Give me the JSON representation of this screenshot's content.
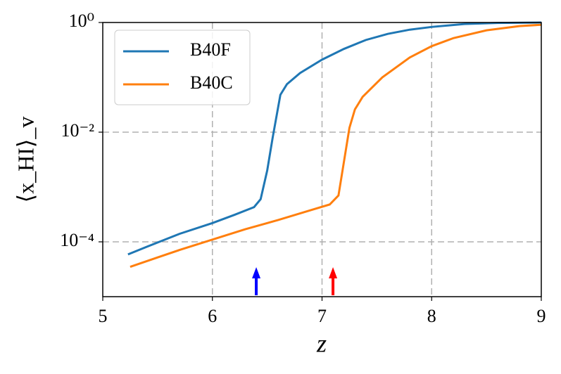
{
  "chart_data": {
    "type": "line",
    "xlabel": "z",
    "ylabel": "⟨x_HI⟩_v",
    "xlim": [
      5,
      9
    ],
    "xticks": [
      5,
      6,
      7,
      8,
      9
    ],
    "ylim": [
      1e-05,
      1
    ],
    "log_y": true,
    "yticks": [
      {
        "value": 0.0001,
        "label": "10⁻⁴"
      },
      {
        "value": 0.01,
        "label": "10⁻²"
      },
      {
        "value": 1,
        "label": "10⁰"
      }
    ],
    "grid": true,
    "legend": "upper left",
    "series": [
      {
        "name": "B40F",
        "color": "#1f77b4",
        "x": [
          5.23,
          5.4,
          5.7,
          6.0,
          6.2,
          6.38,
          6.44,
          6.5,
          6.55,
          6.62,
          6.68,
          6.8,
          7.0,
          7.2,
          7.4,
          7.6,
          7.8,
          8.0,
          8.3,
          8.6,
          9.0
        ],
        "values": [
          5.9e-05,
          8.1e-05,
          0.00014,
          0.00022,
          0.00031,
          0.00043,
          0.0006,
          0.002,
          0.008,
          0.048,
          0.075,
          0.12,
          0.21,
          0.33,
          0.48,
          0.62,
          0.74,
          0.83,
          0.94,
          0.98,
          1.0
        ]
      },
      {
        "name": "B40C",
        "color": "#ff7f0e",
        "x": [
          5.25,
          5.5,
          5.7,
          6.0,
          6.3,
          6.6,
          6.9,
          7.07,
          7.15,
          7.2,
          7.25,
          7.3,
          7.37,
          7.55,
          7.8,
          8.0,
          8.2,
          8.5,
          8.8,
          9.0
        ],
        "values": [
          3.5e-05,
          5.2e-05,
          7.1e-05,
          0.00011,
          0.00017,
          0.00025,
          0.00038,
          0.00048,
          0.0007,
          0.0029,
          0.012,
          0.026,
          0.044,
          0.1,
          0.23,
          0.37,
          0.52,
          0.72,
          0.86,
          0.91
        ]
      }
    ],
    "arrows": [
      {
        "x": 6.4,
        "color": "#0000ff"
      },
      {
        "x": 7.1,
        "color": "#ff0000"
      }
    ]
  }
}
